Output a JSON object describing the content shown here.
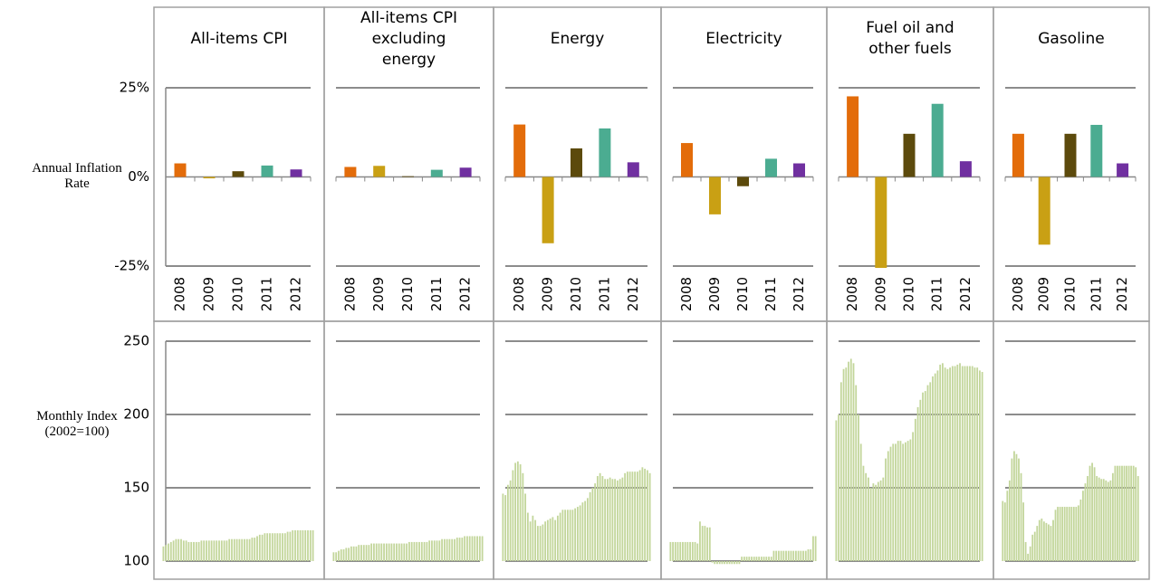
{
  "chart_data": [
    {
      "type": "bar",
      "title": "All-items CPI",
      "ylabel": "Annual Inflation Rate",
      "categories": [
        "2008",
        "2009",
        "2010",
        "2011",
        "2012"
      ],
      "values": [
        3.8,
        -0.4,
        1.6,
        3.2,
        2.1
      ],
      "colors": [
        "#e36c0a",
        "#c9a014",
        "#5c4a0c",
        "#4bac91",
        "#7030a0"
      ],
      "ylim": [
        -25,
        25
      ],
      "yticks": [
        {
          "value": 25,
          "label": "25%"
        },
        {
          "value": 0,
          "label": "0%"
        },
        {
          "value": -25,
          "label": "-25%"
        }
      ],
      "ytick_labels": true
    },
    {
      "type": "bar",
      "title": "All-items CPI excluding energy",
      "categories": [
        "2008",
        "2009",
        "2010",
        "2011",
        "2012"
      ],
      "values": [
        2.8,
        3.1,
        0.2,
        2.0,
        2.6
      ],
      "colors": [
        "#e36c0a",
        "#c9a014",
        "#5c4a0c",
        "#4bac91",
        "#7030a0"
      ],
      "ylim": [
        -25,
        25
      ],
      "yticks": [
        25,
        0,
        -25
      ],
      "ytick_labels": false
    },
    {
      "type": "bar",
      "title": "Energy",
      "categories": [
        "2008",
        "2009",
        "2010",
        "2011",
        "2012"
      ],
      "values": [
        14.7,
        -18.6,
        8.0,
        13.6,
        4.1
      ],
      "colors": [
        "#e36c0a",
        "#c9a014",
        "#5c4a0c",
        "#4bac91",
        "#7030a0"
      ],
      "ylim": [
        -25,
        25
      ],
      "yticks": [
        25,
        0,
        -25
      ],
      "ytick_labels": false
    },
    {
      "type": "bar",
      "title": "Electricity",
      "categories": [
        "2008",
        "2009",
        "2010",
        "2011",
        "2012"
      ],
      "values": [
        9.5,
        -10.5,
        -2.6,
        5.1,
        3.8
      ],
      "colors": [
        "#e36c0a",
        "#c9a014",
        "#5c4a0c",
        "#4bac91",
        "#7030a0"
      ],
      "ylim": [
        -25,
        25
      ],
      "yticks": [
        25,
        0,
        -25
      ],
      "ytick_labels": false
    },
    {
      "type": "bar",
      "title": "Fuel oil and other fuels",
      "categories": [
        "2008",
        "2009",
        "2010",
        "2011",
        "2012"
      ],
      "values": [
        22.6,
        -27,
        12.1,
        20.5,
        4.4
      ],
      "colors": [
        "#e36c0a",
        "#c9a014",
        "#5c4a0c",
        "#4bac91",
        "#7030a0"
      ],
      "ylim": [
        -25,
        25
      ],
      "yticks": [
        25,
        0,
        -25
      ],
      "ytick_labels": false
    },
    {
      "type": "bar",
      "title": "Gasoline",
      "categories": [
        "2008",
        "2009",
        "2010",
        "2011",
        "2012"
      ],
      "values": [
        12.1,
        -19,
        12.1,
        14.6,
        3.8
      ],
      "colors": [
        "#e36c0a",
        "#c9a014",
        "#5c4a0c",
        "#4bac91",
        "#7030a0"
      ],
      "ylim": [
        -25,
        25
      ],
      "yticks": [
        25,
        0,
        -25
      ],
      "ytick_labels": false
    },
    {
      "type": "monthly",
      "ylabel": "Monthly Index (2002=100)",
      "color": "#c3d69b",
      "ylim": [
        100,
        250
      ],
      "yticks": [
        250,
        200,
        150,
        100
      ],
      "ytick_labels": true,
      "values": [
        110,
        111,
        112,
        113,
        114,
        115,
        115,
        115,
        114,
        114,
        113,
        113,
        113,
        113,
        113,
        114,
        114,
        114,
        114,
        114,
        114,
        114,
        114,
        114,
        114,
        114,
        115,
        115,
        115,
        115,
        115,
        115,
        115,
        115,
        115,
        116,
        116,
        117,
        118,
        118,
        119,
        119,
        119,
        119,
        119,
        119,
        119,
        119,
        119,
        120,
        120,
        121,
        121,
        121,
        121,
        121,
        121,
        121,
        121,
        121
      ]
    },
    {
      "type": "monthly",
      "color": "#c3d69b",
      "ylim": [
        100,
        250
      ],
      "yticks": [
        250,
        200,
        150,
        100
      ],
      "ytick_labels": false,
      "values": [
        106,
        106,
        107,
        108,
        108,
        109,
        109,
        110,
        110,
        110,
        111,
        111,
        111,
        111,
        111,
        112,
        112,
        112,
        112,
        112,
        112,
        112,
        112,
        112,
        112,
        112,
        112,
        112,
        112,
        112,
        113,
        113,
        113,
        113,
        113,
        113,
        113,
        113,
        114,
        114,
        114,
        114,
        114,
        115,
        115,
        115,
        115,
        115,
        115,
        116,
        116,
        116,
        117,
        117,
        117,
        117,
        117,
        117,
        117,
        117
      ]
    },
    {
      "type": "monthly",
      "color": "#c3d69b",
      "ylim": [
        100,
        250
      ],
      "yticks": [
        250,
        200,
        150,
        100
      ],
      "ytick_labels": false,
      "values": [
        146,
        145,
        152,
        155,
        162,
        167,
        168,
        166,
        160,
        146,
        133,
        127,
        131,
        128,
        124,
        124,
        125,
        127,
        128,
        129,
        130,
        128,
        131,
        133,
        135,
        135,
        135,
        135,
        135,
        136,
        137,
        138,
        140,
        141,
        143,
        147,
        150,
        153,
        158,
        160,
        158,
        156,
        156,
        157,
        156,
        156,
        155,
        156,
        157,
        160,
        161,
        161,
        161,
        161,
        161,
        162,
        164,
        163,
        162,
        160
      ]
    },
    {
      "type": "monthly",
      "color": "#c3d69b",
      "ylim": [
        100,
        250
      ],
      "yticks": [
        250,
        200,
        150,
        100
      ],
      "ytick_labels": false,
      "values": [
        113,
        113,
        113,
        113,
        113,
        113,
        113,
        113,
        113,
        113,
        113,
        112,
        127,
        124,
        124,
        123,
        123,
        99,
        98,
        98,
        98,
        98,
        98,
        98,
        98,
        98,
        98,
        98,
        98,
        103,
        103,
        103,
        103,
        103,
        103,
        103,
        103,
        103,
        103,
        103,
        103,
        103,
        107,
        107,
        107,
        107,
        107,
        107,
        107,
        107,
        107,
        107,
        107,
        107,
        107,
        107,
        108,
        108,
        117,
        117
      ]
    },
    {
      "type": "monthly",
      "color": "#c3d69b",
      "ylim": [
        100,
        250
      ],
      "yticks": [
        250,
        200,
        150,
        100
      ],
      "ytick_labels": false,
      "values": [
        196,
        200,
        222,
        231,
        232,
        236,
        238,
        235,
        220,
        200,
        180,
        165,
        160,
        157,
        150,
        153,
        152,
        154,
        155,
        157,
        170,
        175,
        178,
        180,
        180,
        182,
        182,
        180,
        181,
        182,
        183,
        188,
        197,
        205,
        210,
        215,
        216,
        220,
        222,
        226,
        228,
        230,
        234,
        235,
        232,
        231,
        232,
        233,
        233,
        234,
        235,
        233,
        233,
        233,
        233,
        233,
        232,
        232,
        230,
        229
      ]
    },
    {
      "type": "monthly",
      "color": "#c3d69b",
      "ylim": [
        100,
        250
      ],
      "yticks": [
        250,
        200,
        150,
        100
      ],
      "ytick_labels": false,
      "values": [
        141,
        140,
        148,
        155,
        170,
        175,
        173,
        170,
        160,
        140,
        113,
        105,
        110,
        118,
        120,
        124,
        128,
        129,
        127,
        126,
        125,
        124,
        128,
        135,
        137,
        137,
        137,
        137,
        137,
        137,
        137,
        137,
        137,
        138,
        142,
        148,
        153,
        158,
        165,
        167,
        164,
        158,
        157,
        156,
        156,
        155,
        154,
        155,
        160,
        165,
        165,
        165,
        165,
        165,
        165,
        165,
        165,
        165,
        164,
        158
      ]
    }
  ]
}
